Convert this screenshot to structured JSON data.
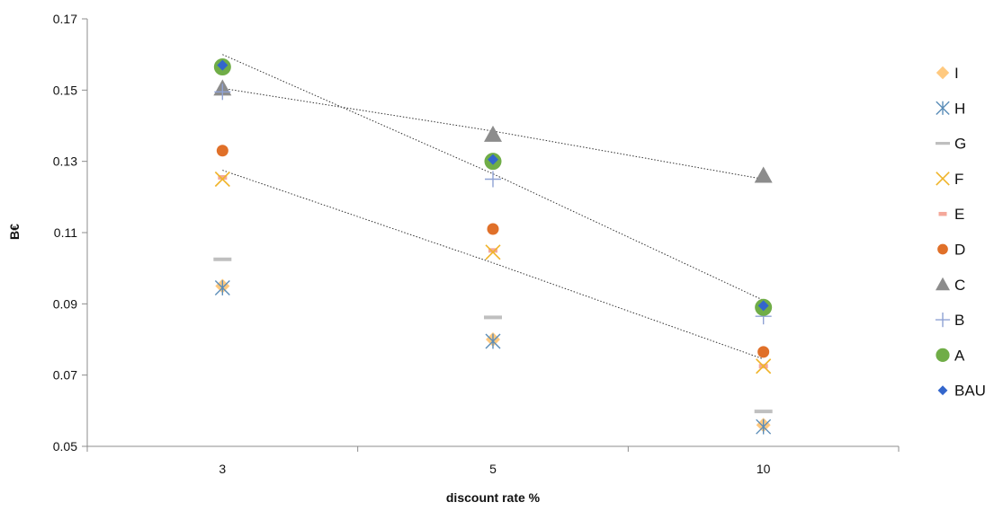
{
  "chart_data": {
    "type": "scatter",
    "title": "",
    "xlabel": "discount rate %",
    "ylabel": "B€",
    "categories": [
      "3",
      "5",
      "10"
    ],
    "ylim": [
      0.05,
      0.17
    ],
    "yticks": [
      "0.05",
      "0.07",
      "0.09",
      "0.11",
      "0.13",
      "0.15",
      "0.17"
    ],
    "grid": false,
    "legend_position": "right",
    "series": [
      {
        "name": "I",
        "marker": "diamond",
        "color": "#ffc97f",
        "values": [
          0.095,
          0.08,
          0.056
        ]
      },
      {
        "name": "H",
        "marker": "asterisk",
        "color": "#5b8db8",
        "values": [
          0.0945,
          0.0795,
          0.0555
        ]
      },
      {
        "name": "G",
        "marker": "dash",
        "color": "#bfbfbf",
        "values": [
          0.1025,
          0.0862,
          0.0598
        ]
      },
      {
        "name": "F",
        "marker": "x",
        "color": "#f0b429",
        "values": [
          0.125,
          0.1045,
          0.0725
        ]
      },
      {
        "name": "E",
        "marker": "dash-small",
        "color": "#f4a89a",
        "values": [
          0.1255,
          0.105,
          0.0725
        ]
      },
      {
        "name": "D",
        "marker": "circle",
        "color": "#e07029",
        "values": [
          0.133,
          0.111,
          0.0765
        ]
      },
      {
        "name": "C",
        "marker": "triangle",
        "color": "#8c8c8c",
        "values": [
          0.1505,
          0.1375,
          0.126
        ]
      },
      {
        "name": "B",
        "marker": "plus",
        "color": "#8fa2d4",
        "values": [
          0.1495,
          0.125,
          0.0865
        ]
      },
      {
        "name": "A",
        "marker": "circle-large",
        "color": "#70ad47",
        "values": [
          0.1565,
          0.13,
          0.089
        ]
      },
      {
        "name": "BAU",
        "marker": "diamond-small",
        "color": "#3366cc",
        "values": [
          0.157,
          0.1305,
          0.0895
        ]
      }
    ],
    "trendlines": [
      {
        "series": "C",
        "values": [
          0.1505,
          0.1385,
          0.125
        ]
      },
      {
        "series": "A",
        "values": [
          0.16,
          0.1265,
          0.091
        ]
      },
      {
        "series": "F",
        "values": [
          0.1275,
          0.1015,
          0.0745
        ]
      }
    ]
  }
}
